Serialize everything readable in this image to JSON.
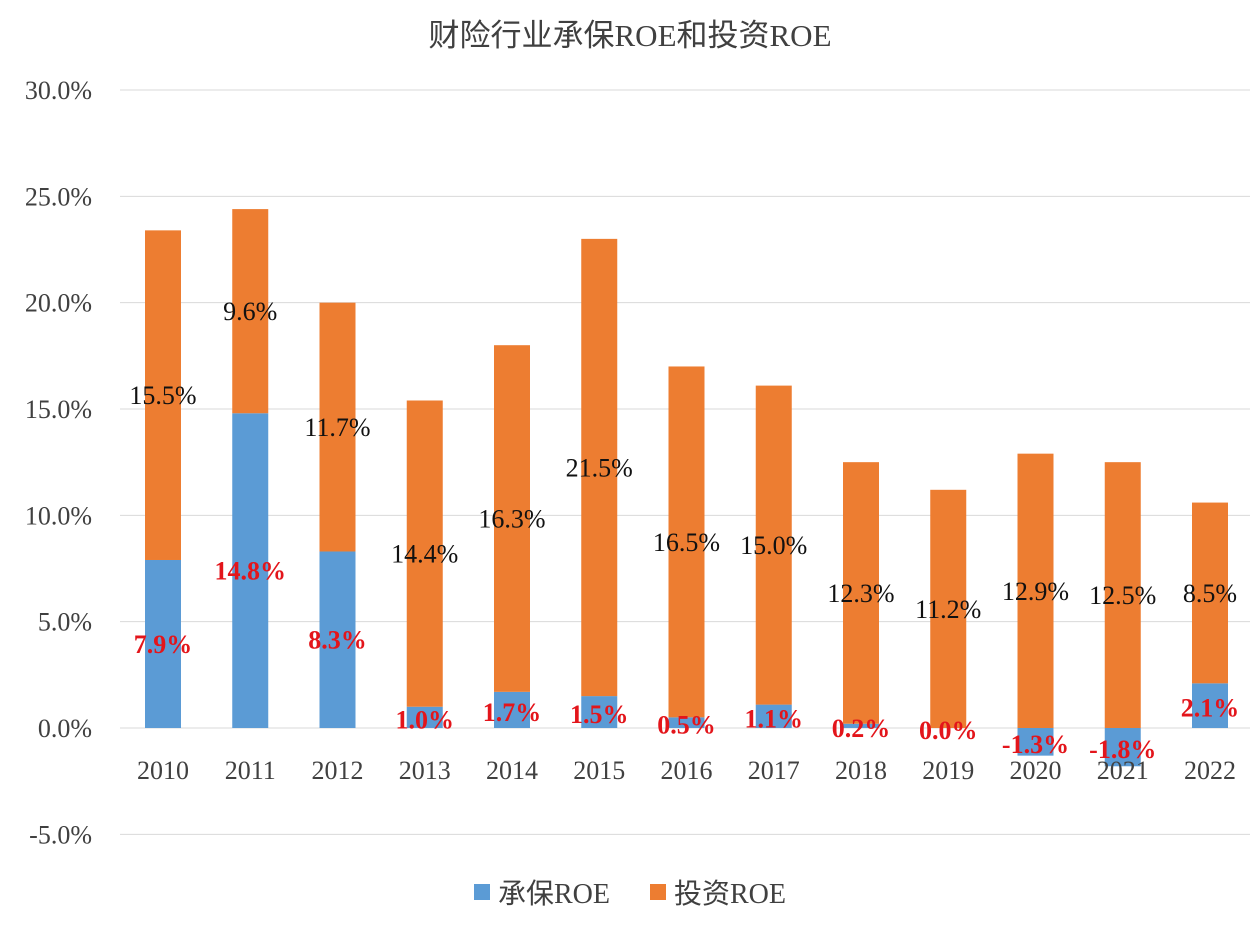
{
  "chart_data": {
    "type": "bar",
    "stacked": true,
    "title": "财险行业承保ROE和投资ROE",
    "categories": [
      "2010",
      "2011",
      "2012",
      "2013",
      "2014",
      "2015",
      "2016",
      "2017",
      "2018",
      "2019",
      "2020",
      "2021",
      "2022"
    ],
    "series": [
      {
        "name": "承保ROE",
        "color": "#5b9bd5",
        "label_color": "#e3151b",
        "values": [
          7.9,
          14.8,
          8.3,
          1.0,
          1.7,
          1.5,
          0.5,
          1.1,
          0.2,
          0.0,
          -1.3,
          -1.8,
          2.1
        ]
      },
      {
        "name": "投资ROE",
        "color": "#ed7d31",
        "label_color": "#111111",
        "values": [
          15.5,
          9.6,
          11.7,
          14.4,
          16.3,
          21.5,
          16.5,
          15.0,
          12.3,
          11.2,
          12.9,
          12.5,
          8.5
        ]
      }
    ],
    "ylim": [
      -5,
      30
    ],
    "yticks": [
      "-5.0%",
      "0.0%",
      "5.0%",
      "10.0%",
      "15.0%",
      "20.0%",
      "25.0%",
      "30.0%"
    ],
    "grid": true,
    "legend": "bottom",
    "unit": "%"
  }
}
